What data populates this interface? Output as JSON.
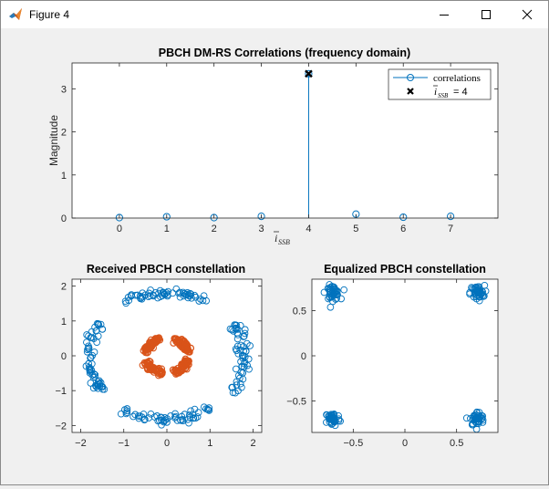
{
  "window": {
    "title": "Figure 4",
    "app_icon": "matlab-icon",
    "controls": [
      "minimize-icon",
      "maximize-icon",
      "close-icon"
    ]
  },
  "chart_data": [
    {
      "type": "scatter",
      "subtype": "stem",
      "title": "PBCH DM-RS Correlations (frequency domain)",
      "xlabel": "i_SSB (italic, with bar accent)",
      "ylabel": "Magnitude",
      "xlim": [
        -1,
        8
      ],
      "ylim": [
        0,
        3.6
      ],
      "xticks": [
        0,
        1,
        2,
        3,
        4,
        5,
        6,
        7
      ],
      "yticks": [
        0,
        1,
        2,
        3
      ],
      "grid": false,
      "legend_position": "top-right",
      "series": [
        {
          "name": "correlations",
          "color": "#0072bd",
          "marker": "circle",
          "x": [
            0,
            1,
            2,
            3,
            4,
            5,
            6,
            7
          ],
          "y": [
            0.01,
            0.03,
            0.01,
            0.04,
            3.35,
            0.09,
            0.02,
            0.04
          ]
        },
        {
          "name": "i_SSB = 4",
          "color": "#000000",
          "marker": "x",
          "x": [
            4
          ],
          "y": [
            3.35
          ]
        }
      ],
      "legend_entries": [
        "correlations",
        "i_SSB = 4"
      ]
    },
    {
      "type": "scatter",
      "title": "Received PBCH constellation",
      "xlim": [
        -2.2,
        2.2
      ],
      "ylim": [
        -2.2,
        2.2
      ],
      "xticks": [
        -2,
        -1,
        0,
        1,
        2
      ],
      "yticks": [
        -2,
        -1,
        0,
        1,
        2
      ],
      "grid": false,
      "series": [
        {
          "name": "",
          "color": "#0072bd",
          "description": "four blue arc clusters at radius about 1.8",
          "clusters": [
            {
              "center": [
                0,
                1.8
              ],
              "shape": "horizontal arc"
            },
            {
              "center": [
                0,
                -1.8
              ],
              "shape": "horizontal arc"
            },
            {
              "center": [
                -1.85,
                -0.05
              ],
              "shape": "vertical arc"
            },
            {
              "center": [
                1.85,
                -0.05
              ],
              "shape": "vertical arc"
            }
          ]
        },
        {
          "name": "",
          "color": "#d95319",
          "description": "ring of orange points at radius about 0.6 with four dense lobes",
          "clusters": [
            {
              "center": [
                0.35,
                0.3
              ]
            },
            {
              "center": [
                -0.35,
                0.3
              ]
            },
            {
              "center": [
                -0.3,
                -0.35
              ]
            },
            {
              "center": [
                0.35,
                -0.3
              ]
            }
          ]
        }
      ]
    },
    {
      "type": "scatter",
      "title": "Equalized PBCH constellation",
      "xlim": [
        -0.9,
        0.9
      ],
      "ylim": [
        -0.85,
        0.85
      ],
      "xticks": [
        -0.5,
        0,
        0.5
      ],
      "yticks": [
        -0.5,
        0,
        0.5
      ],
      "grid": false,
      "series": [
        {
          "name": "",
          "color": "#0072bd",
          "description": "four QPSK clusters",
          "clusters": [
            {
              "center": [
                -0.7,
                0.7
              ]
            },
            {
              "center": [
                0.7,
                0.7
              ]
            },
            {
              "center": [
                -0.7,
                -0.7
              ]
            },
            {
              "center": [
                0.7,
                -0.7
              ]
            }
          ]
        }
      ]
    }
  ]
}
